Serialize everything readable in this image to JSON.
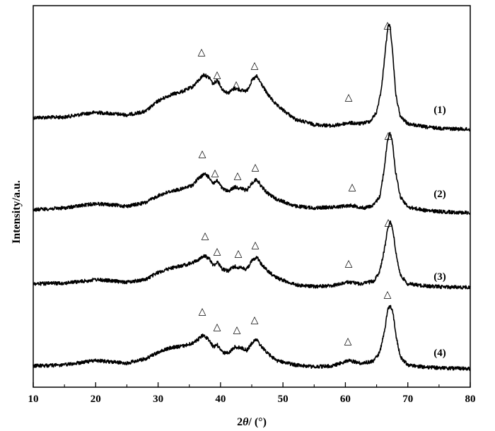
{
  "chart_data": {
    "type": "line",
    "xlabel_main": "2",
    "xlabel_theta": "θ",
    "xlabel_unit": "/ (°)",
    "ylabel": "Intensity/a.u.",
    "xlim": [
      10,
      80
    ],
    "x_ticks": [
      "10",
      "20",
      "30",
      "40",
      "50",
      "60",
      "70",
      "80"
    ],
    "grid": false,
    "y_ticks": false,
    "peak_marker": "△",
    "series": [
      {
        "name": "(1)",
        "x": [
          10,
          15,
          18,
          20,
          25,
          28,
          30,
          32,
          34,
          35.5,
          36.5,
          37.3,
          38.3,
          38.8,
          39.5,
          40.3,
          41.2,
          42.3,
          43.4,
          44.2,
          45.1,
          45.8,
          46.5,
          47.5,
          49,
          52,
          55,
          58,
          60.5,
          62.5,
          64,
          65,
          65.8,
          66.4,
          66.9,
          67.2,
          67.6,
          68.1,
          68.8,
          70,
          73,
          76,
          80
        ],
        "y": [
          30,
          31,
          38,
          42,
          36,
          44,
          68,
          82,
          90,
          100,
          115,
          128,
          120,
          106,
          116,
          94,
          86,
          97,
          92,
          91,
          116,
          124,
          108,
          84,
          58,
          26,
          14,
          11,
          18,
          16,
          22,
          42,
          98,
          185,
          245,
          235,
          170,
          80,
          32,
          16,
          8,
          5,
          3
        ]
      },
      {
        "name": "(2)",
        "x": [
          10,
          15,
          18,
          20,
          25,
          28,
          30,
          32,
          34,
          35.5,
          36.5,
          37.5,
          38.3,
          38.8,
          39.5,
          40.3,
          41.2,
          42.3,
          43.4,
          44.2,
          45.1,
          45.8,
          46.5,
          47.5,
          49,
          52,
          55,
          58,
          61,
          63,
          64.5,
          65.5,
          66.2,
          66.7,
          67.1,
          67.5,
          68,
          68.8,
          70,
          73,
          76,
          80
        ],
        "y": [
          10,
          14,
          20,
          24,
          18,
          26,
          42,
          52,
          58,
          66,
          82,
          92,
          82,
          70,
          76,
          58,
          52,
          62,
          58,
          54,
          72,
          80,
          64,
          48,
          34,
          18,
          14,
          16,
          20,
          14,
          20,
          40,
          100,
          165,
          185,
          170,
          100,
          40,
          16,
          8,
          5,
          3
        ]
      },
      {
        "name": "(3)",
        "x": [
          10,
          15,
          18,
          20,
          25,
          28,
          30,
          32,
          34,
          35.5,
          36.5,
          37.5,
          38.3,
          38.8,
          39.5,
          40.3,
          41.2,
          42.3,
          43.4,
          44.2,
          45.1,
          45.8,
          46.5,
          47.5,
          49,
          52,
          55,
          58,
          60.5,
          62.5,
          64.5,
          65.5,
          66.3,
          66.8,
          67.2,
          67.6,
          68.1,
          68.8,
          70,
          73,
          76,
          80
        ],
        "y": [
          10,
          12,
          16,
          20,
          14,
          20,
          36,
          46,
          52,
          58,
          66,
          74,
          66,
          52,
          60,
          44,
          40,
          50,
          46,
          44,
          64,
          72,
          56,
          40,
          24,
          8,
          4,
          6,
          14,
          10,
          16,
          38,
          92,
          140,
          150,
          135,
          80,
          30,
          10,
          5,
          3,
          2
        ]
      },
      {
        "name": "(4)",
        "x": [
          10,
          15,
          18,
          20,
          25,
          28,
          30,
          32,
          34,
          35.5,
          36.5,
          37.2,
          38.3,
          38.8,
          39.5,
          40.3,
          41.2,
          42.3,
          43.4,
          44.2,
          45.1,
          45.8,
          46.5,
          47.5,
          49,
          52,
          55,
          58,
          60.5,
          62.5,
          64.5,
          65.5,
          66.3,
          66.8,
          67.2,
          67.6,
          68.1,
          68.8,
          70,
          73,
          76,
          80
        ],
        "y": [
          8,
          10,
          16,
          20,
          14,
          24,
          38,
          48,
          52,
          58,
          68,
          76,
          64,
          50,
          54,
          38,
          36,
          50,
          48,
          42,
          60,
          66,
          52,
          36,
          20,
          10,
          6,
          8,
          20,
          14,
          18,
          38,
          88,
          132,
          142,
          128,
          76,
          28,
          10,
          5,
          3,
          2
        ]
      }
    ]
  },
  "figure": {
    "labels": [
      "(1)",
      "(2)",
      "(3)",
      "(4)"
    ]
  }
}
